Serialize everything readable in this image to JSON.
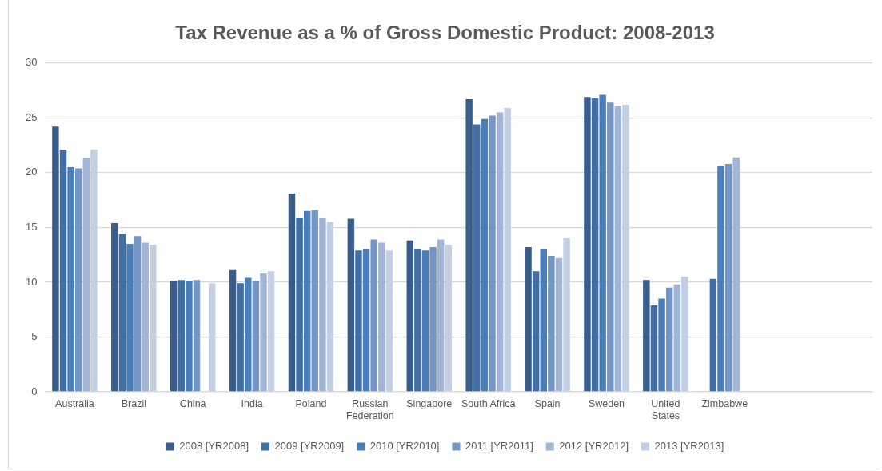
{
  "chart_data": {
    "type": "bar",
    "title": "Tax Revenue as a % of Gross Domestic Product: 2008-2013",
    "categories": [
      "Australia",
      "Brazil",
      "China",
      "India",
      "Poland",
      "Russian Federation",
      "Singapore",
      "South Africa",
      "Spain",
      "Sweden",
      "United States",
      "Zimbabwe",
      null,
      null
    ],
    "series": [
      {
        "name": "2008 [YR2008]",
        "color": "#3a5e8c",
        "values": [
          24.2,
          15.4,
          10.1,
          11.1,
          18.1,
          15.8,
          13.8,
          26.7,
          13.2,
          26.9,
          10.2,
          null,
          null,
          null
        ]
      },
      {
        "name": "2009 [YR2009]",
        "color": "#416ea3",
        "values": [
          22.1,
          14.4,
          10.2,
          9.9,
          15.9,
          12.9,
          13.0,
          24.4,
          11.0,
          26.8,
          7.9,
          10.3,
          null,
          null
        ]
      },
      {
        "name": "2010 [YR2010]",
        "color": "#4a7ebb",
        "values": [
          20.5,
          13.5,
          10.1,
          10.4,
          16.5,
          13.0,
          12.9,
          24.9,
          13.0,
          27.1,
          8.5,
          20.6,
          null,
          null
        ]
      },
      {
        "name": "2011 [YR2011]",
        "color": "#7496c7",
        "values": [
          20.4,
          14.2,
          10.2,
          10.1,
          16.6,
          13.9,
          13.2,
          25.2,
          12.4,
          26.4,
          9.5,
          20.8,
          null,
          null
        ]
      },
      {
        "name": "2012 [YR2012]",
        "color": "#a3b5d6",
        "values": [
          21.3,
          13.6,
          null,
          10.8,
          15.9,
          13.6,
          13.9,
          25.5,
          12.2,
          26.1,
          9.8,
          21.4,
          null,
          null
        ]
      },
      {
        "name": "2013 [YR2013]",
        "color": "#c3cfe3",
        "values": [
          22.1,
          13.4,
          9.9,
          11.0,
          15.5,
          12.9,
          13.4,
          25.9,
          14.0,
          26.2,
          10.5,
          null,
          null,
          null
        ]
      }
    ],
    "ylim": [
      0,
      30
    ],
    "yticks": [
      0,
      5,
      10,
      15,
      20,
      25,
      30
    ],
    "grid": "y",
    "legend": "bottom"
  }
}
